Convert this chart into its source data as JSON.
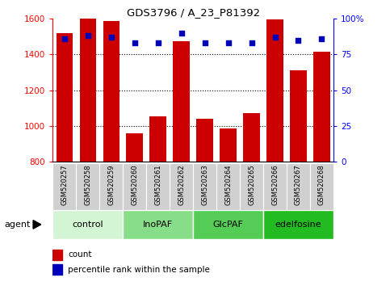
{
  "title": "GDS3796 / A_23_P81392",
  "samples": [
    "GSM520257",
    "GSM520258",
    "GSM520259",
    "GSM520260",
    "GSM520261",
    "GSM520262",
    "GSM520263",
    "GSM520264",
    "GSM520265",
    "GSM520266",
    "GSM520267",
    "GSM520268"
  ],
  "count_values": [
    1520,
    1600,
    1585,
    960,
    1055,
    1475,
    1040,
    985,
    1070,
    1595,
    1310,
    1415
  ],
  "percentile_values": [
    86,
    88,
    87,
    83,
    83,
    90,
    83,
    83,
    83,
    87,
    85,
    86
  ],
  "ylim_left": [
    800,
    1600
  ],
  "ylim_right": [
    0,
    100
  ],
  "yticks_left": [
    800,
    1000,
    1200,
    1400,
    1600
  ],
  "yticks_right": [
    0,
    25,
    50,
    75,
    100
  ],
  "ytick_labels_right": [
    "0",
    "25",
    "50",
    "75",
    "100%"
  ],
  "bar_color": "#cc0000",
  "dot_color": "#0000bb",
  "groups": [
    {
      "label": "control",
      "start": 0,
      "end": 3,
      "color": "#d4f5d4"
    },
    {
      "label": "InoPAF",
      "start": 3,
      "end": 6,
      "color": "#88dd88"
    },
    {
      "label": "GlcPAF",
      "start": 6,
      "end": 9,
      "color": "#55cc55"
    },
    {
      "label": "edelfosine",
      "start": 9,
      "end": 12,
      "color": "#22bb22"
    }
  ],
  "xlabel_agent": "agent",
  "legend_count": "count",
  "legend_percentile": "percentile rank within the sample",
  "sample_box_color": "#d0d0d0",
  "plot_bg": "#ffffff",
  "fig_bg": "#ffffff"
}
